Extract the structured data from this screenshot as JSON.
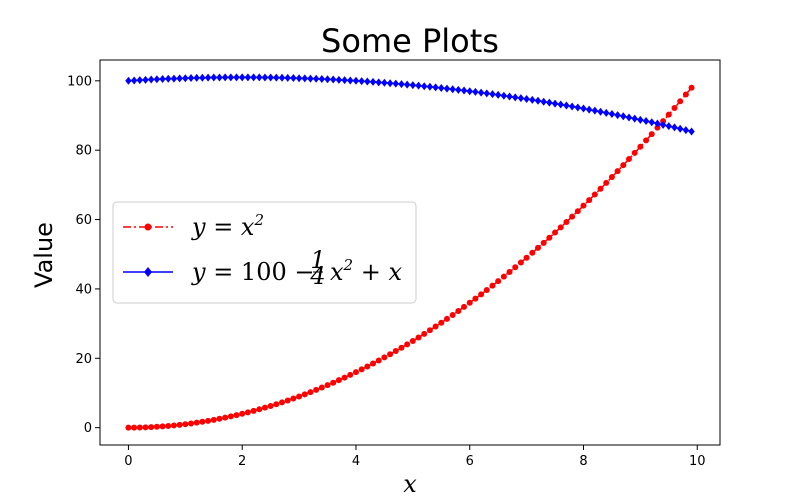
{
  "chart_data": {
    "type": "line",
    "title": "Some Plots",
    "xlabel": "x",
    "ylabel": "Value",
    "xlim": [
      -0.5,
      10.4
    ],
    "ylim": [
      -5,
      106
    ],
    "xticks": [
      0,
      2,
      4,
      6,
      8,
      10
    ],
    "yticks": [
      0,
      20,
      40,
      60,
      80,
      100
    ],
    "grid": false,
    "legend_position": "center-left",
    "series": [
      {
        "name": "y = x^2",
        "color": "#ff0000",
        "linestyle": "dashdot",
        "marker": "circle",
        "x_start": 0,
        "x_end": 9.9,
        "x_step": 0.1,
        "y": [
          0.0,
          0.01,
          0.04,
          0.09,
          0.16,
          0.25,
          0.36,
          0.49,
          0.64,
          0.81,
          1.0,
          1.21,
          1.44,
          1.69,
          1.96,
          2.25,
          2.56,
          2.89,
          3.24,
          3.61,
          4.0,
          4.41,
          4.84,
          5.29,
          5.76,
          6.25,
          6.76,
          7.29,
          7.84,
          8.41,
          9.0,
          9.61,
          10.24,
          10.89,
          11.56,
          12.25,
          12.96,
          13.69,
          14.44,
          15.21,
          16.0,
          16.81,
          17.64,
          18.49,
          19.36,
          20.25,
          21.16,
          22.09,
          23.04,
          24.01,
          25.0,
          26.01,
          27.04,
          28.09,
          29.16,
          30.25,
          31.36,
          32.49,
          33.64,
          34.81,
          36.0,
          37.21,
          38.44,
          39.69,
          40.96,
          42.25,
          43.56,
          44.89,
          46.24,
          47.61,
          49.0,
          50.41,
          51.84,
          53.29,
          54.76,
          56.25,
          57.76,
          59.29,
          60.84,
          62.41,
          64.0,
          65.61,
          67.24,
          68.89,
          70.56,
          72.25,
          73.96,
          75.69,
          77.44,
          79.21,
          81.0,
          82.81,
          84.64,
          86.49,
          88.36,
          90.25,
          92.16,
          94.09,
          96.04,
          98.01
        ]
      },
      {
        "name": "y = 100 - x^2/4 + x",
        "color": "#0000ff",
        "linestyle": "solid",
        "marker": "diamond",
        "x_start": 0,
        "x_end": 9.9,
        "x_step": 0.1,
        "y": [
          100.0,
          100.0975,
          100.19,
          100.2775,
          100.36,
          100.4375,
          100.51,
          100.5775,
          100.64,
          100.6975,
          100.75,
          100.7975,
          100.84,
          100.8775,
          100.91,
          100.9375,
          100.96,
          100.9775,
          100.99,
          100.9975,
          101.0,
          100.9975,
          100.99,
          100.9775,
          100.96,
          100.9375,
          100.91,
          100.8775,
          100.84,
          100.7975,
          100.75,
          100.6975,
          100.64,
          100.5775,
          100.51,
          100.4375,
          100.36,
          100.2775,
          100.19,
          100.0975,
          100.0,
          99.8975,
          99.79,
          99.6775,
          99.56,
          99.4375,
          99.31,
          99.1775,
          99.04,
          98.8975,
          98.75,
          98.5975,
          98.44,
          98.2775,
          98.11,
          97.9375,
          97.76,
          97.5775,
          97.39,
          97.1975,
          97.0,
          96.7975,
          96.59,
          96.3775,
          96.16,
          95.9375,
          95.71,
          95.4775,
          95.24,
          94.9975,
          94.75,
          94.4975,
          94.24,
          93.9775,
          93.71,
          93.4375,
          93.16,
          92.8775,
          92.59,
          92.2975,
          92.0,
          91.6975,
          91.39,
          91.0775,
          90.76,
          90.4375,
          90.11,
          89.7775,
          89.44,
          89.0975,
          88.75,
          88.3975,
          88.04,
          87.6775,
          87.31,
          86.9375,
          86.56,
          86.1775,
          85.79,
          85.3975
        ]
      }
    ]
  }
}
